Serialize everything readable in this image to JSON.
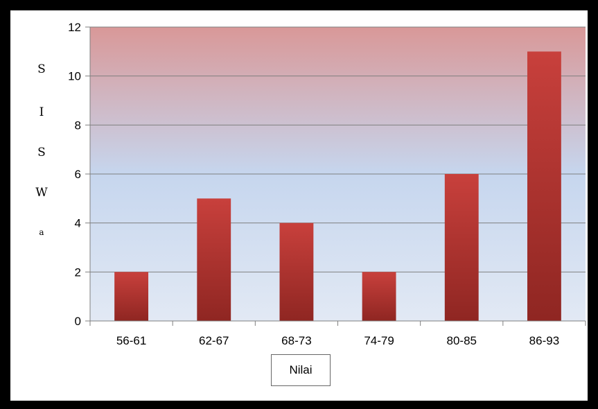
{
  "chart_data": {
    "type": "bar",
    "categories": [
      "56-61",
      "62-67",
      "68-73",
      "74-79",
      "80-85",
      "86-93"
    ],
    "values": [
      2,
      5,
      4,
      2,
      6,
      11
    ],
    "ylim": [
      0,
      12
    ],
    "yticks": [
      0,
      2,
      4,
      6,
      8,
      10,
      12
    ],
    "xlabel": "Nilai",
    "ylabel_letters": [
      "S",
      "I",
      "S",
      "W",
      "a"
    ],
    "grid": true,
    "colors": {
      "bar": "#c8403c",
      "bar_dark": "#8f2622",
      "plot_top": "#d99898",
      "plot_mid": "#c6d6ee",
      "plot_bottom": "#e2e9f4"
    }
  }
}
